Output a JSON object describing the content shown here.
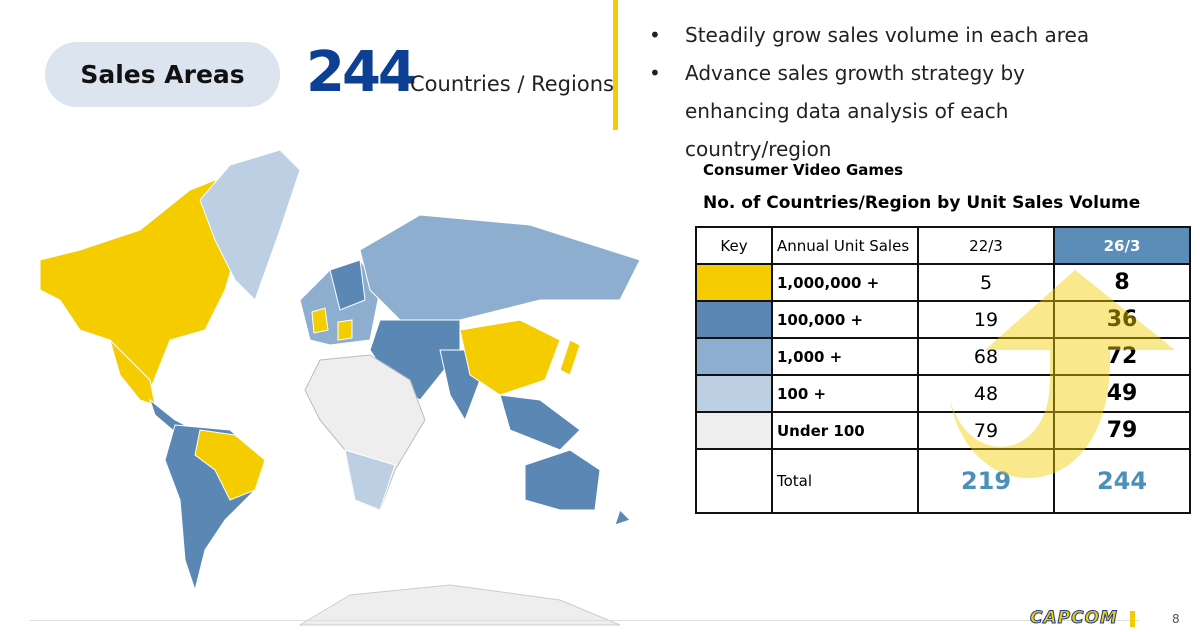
{
  "header": {
    "badge": "Sales Areas",
    "count": 244,
    "count_label": "Countries / Regions"
  },
  "bullets": [
    "Steadily grow sales volume in each area",
    "Advance sales growth strategy by enhancing data analysis of each country/region"
  ],
  "table": {
    "subtitle": "Consumer Video Games",
    "title": "No. of Countries/Region by Unit Sales Volume",
    "columns": [
      "Key",
      "Annual Unit Sales",
      "22/3",
      "26/3"
    ],
    "rows": [
      {
        "key_color": "#f5cc00",
        "label": "1,000,000 +",
        "fy22": 5,
        "fy26": 8
      },
      {
        "key_color": "#5b87b5",
        "label": "100,000 +",
        "fy22": 19,
        "fy26": 36
      },
      {
        "key_color": "#8eaed0",
        "label": "1,000 +",
        "fy22": 68,
        "fy26": 72
      },
      {
        "key_color": "#bccfe3",
        "label": "100 +",
        "fy22": 48,
        "fy26": 49
      },
      {
        "key_color": "#eeeeee",
        "label": "Under 100",
        "fy22": 79,
        "fy26": 79
      }
    ],
    "total": {
      "label": "Total",
      "fy22": 219,
      "fy26": 244
    }
  },
  "footer": {
    "logo": "CAPCOM",
    "page": "8"
  }
}
